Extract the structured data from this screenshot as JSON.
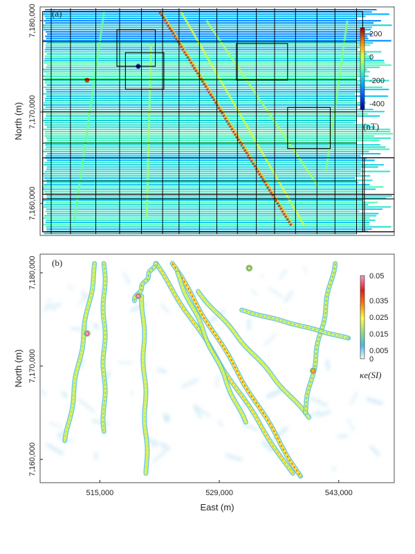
{
  "chart_data": [
    {
      "type": "heatmap",
      "panel_label": "(a)",
      "title": "",
      "xlabel": "",
      "ylabel": "North (m)",
      "xlim": [
        508000,
        549500
      ],
      "ylim": [
        7156500,
        7181500
      ],
      "y_ticks": [
        7160000,
        7170000,
        7180000
      ],
      "y_tick_labels": [
        "7,160,000",
        "7,170,000",
        "7,180,000"
      ],
      "colorbar": {
        "label": "(nT)",
        "range": [
          -450,
          250
        ],
        "ticks": [
          200,
          0,
          -200,
          -400
        ],
        "tick_labels": [
          "200",
          "0",
          "-200",
          "-400"
        ],
        "colors": [
          "#000080",
          "#0050ff",
          "#00b4ff",
          "#50ffb0",
          "#e8ff30",
          "#ff8000",
          "#a00000"
        ]
      },
      "background_value": -150,
      "linear_anomalies": [
        {
          "x1": 522000,
          "y1": 7181000,
          "x2": 537500,
          "y2": 7157500,
          "value": 200
        },
        {
          "x1": 524500,
          "y1": 7181000,
          "x2": 539000,
          "y2": 7157500,
          "value": 0
        },
        {
          "x1": 527500,
          "y1": 7180000,
          "x2": 540500,
          "y2": 7162000,
          "value": -30
        },
        {
          "x1": 521000,
          "y1": 7177500,
          "x2": 520500,
          "y2": 7158500,
          "value": -40
        },
        {
          "x1": 515500,
          "y1": 7181000,
          "x2": 512000,
          "y2": 7158000,
          "value": -80
        },
        {
          "x1": 544000,
          "y1": 7180000,
          "x2": 541500,
          "y2": 7163500,
          "value": -60
        }
      ],
      "point_anomalies": [
        {
          "x": 513500,
          "y": 7173500,
          "value": 200
        },
        {
          "x": 519500,
          "y": 7175000,
          "value": -420
        }
      ],
      "survey_blocks": [
        {
          "x0": 508300,
          "x1": 545800,
          "y0": 7156900,
          "y1": 7181000
        },
        {
          "x0": 517000,
          "x1": 521500,
          "y0": 7175000,
          "y1": 7179000
        },
        {
          "x0": 518000,
          "x1": 522500,
          "y0": 7172500,
          "y1": 7176500
        },
        {
          "x0": 531000,
          "x1": 537000,
          "y0": 7173500,
          "y1": 7177500
        },
        {
          "x0": 537000,
          "x1": 542000,
          "y0": 7166000,
          "y1": 7170500
        },
        {
          "x0": 508300,
          "x1": 549500,
          "y0": 7161000,
          "y1": 7165000
        },
        {
          "x0": 508300,
          "x1": 549500,
          "y0": 7156900,
          "y1": 7160500
        },
        {
          "x0": 546000,
          "x1": 549500,
          "y0": 7156900,
          "y1": 7165000
        }
      ]
    },
    {
      "type": "heatmap",
      "panel_label": "(b)",
      "title": "",
      "xlabel": "East (m)",
      "ylabel": "North (m)",
      "xlim": [
        508000,
        549500
      ],
      "ylim": [
        7157500,
        7182000
      ],
      "x_ticks": [
        515000,
        529000,
        543000
      ],
      "x_tick_labels": [
        "515,000",
        "529,000",
        "543,000"
      ],
      "y_ticks": [
        7160000,
        7170000,
        7180000
      ],
      "y_tick_labels": [
        "7,160,000",
        "7,170,000",
        "7,180,000"
      ],
      "colorbar": {
        "label": "κe(SI)",
        "range": [
          0,
          0.05
        ],
        "ticks": [
          0.05,
          0.035,
          0.025,
          0.015,
          0.005,
          0
        ],
        "tick_labels": [
          "0.05",
          "0.035",
          "0.025",
          "0.015",
          "0.005",
          "0"
        ],
        "colors": [
          "#ffffff",
          "#4bb8e8",
          "#98e080",
          "#ffff40",
          "#ff8000",
          "#e02020",
          "#ff90c0"
        ]
      },
      "linear_features": [
        {
          "x1": 523500,
          "y1": 7181000,
          "x2": 538500,
          "y2": 7158200,
          "value": 0.035
        },
        {
          "x1": 521500,
          "y1": 7181000,
          "x2": 537500,
          "y2": 7158500,
          "value": 0.03
        },
        {
          "x1": 524000,
          "y1": 7180000,
          "x2": 532000,
          "y2": 7164000,
          "value": 0.02
        },
        {
          "x1": 526500,
          "y1": 7178000,
          "x2": 539500,
          "y2": 7164500,
          "value": 0.02
        },
        {
          "x1": 520000,
          "y1": 7177500,
          "x2": 520500,
          "y2": 7158500,
          "value": 0.02
        },
        {
          "x1": 514500,
          "y1": 7181000,
          "x2": 511000,
          "y2": 7162000,
          "value": 0.018
        },
        {
          "x1": 515500,
          "y1": 7181000,
          "x2": 515500,
          "y2": 7163000,
          "value": 0.015
        },
        {
          "x1": 542500,
          "y1": 7181000,
          "x2": 539000,
          "y2": 7165000,
          "value": 0.012
        },
        {
          "x1": 531500,
          "y1": 7176000,
          "x2": 544000,
          "y2": 7173000,
          "value": 0.006
        },
        {
          "x1": 519000,
          "y1": 7177000,
          "x2": 521500,
          "y2": 7181000,
          "value": 0.01
        }
      ],
      "point_features": [
        {
          "x": 513500,
          "y": 7173500,
          "value": 0.05
        },
        {
          "x": 519500,
          "y": 7177500,
          "value": 0.05
        },
        {
          "x": 532500,
          "y": 7180500,
          "value": 0.02
        },
        {
          "x": 540000,
          "y": 7169500,
          "value": 0.03
        }
      ]
    }
  ]
}
